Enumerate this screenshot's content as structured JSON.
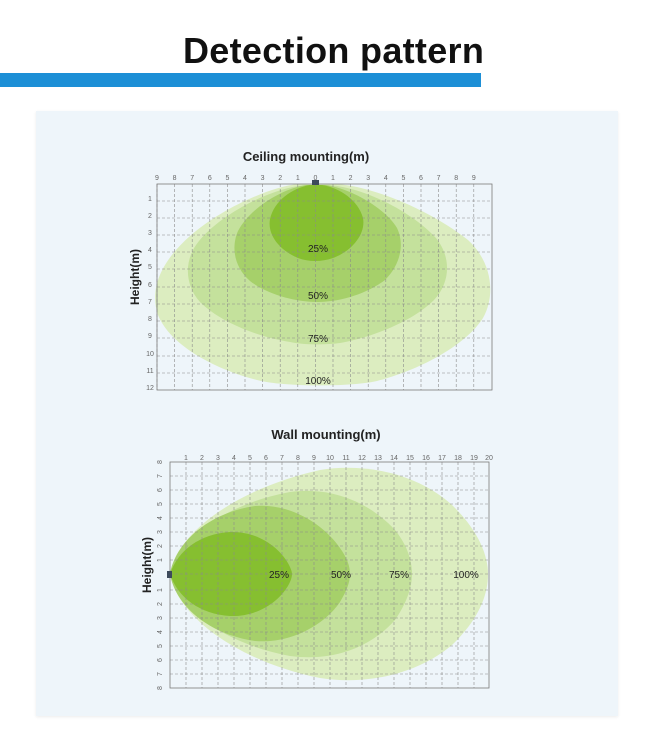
{
  "page": {
    "title": "Detection pattern"
  },
  "colors": {
    "accent_bar": "#1d8fd6",
    "panel_bg": "#eef5fa",
    "zone_100": "#dcedc0",
    "zone_75": "#c4e19c",
    "zone_50": "#a6d06a",
    "zone_25": "#86bf30",
    "sensor": "#3d4a5c"
  },
  "ceiling": {
    "title": "Ceiling mounting(m)",
    "y_axis_title": "Height(m)",
    "x_ticks": [
      "9",
      "8",
      "7",
      "6",
      "5",
      "4",
      "3",
      "2",
      "1",
      "0",
      "1",
      "2",
      "3",
      "4",
      "5",
      "6",
      "7",
      "8",
      "9"
    ],
    "y_ticks": [
      "1",
      "2",
      "3",
      "4",
      "5",
      "6",
      "7",
      "8",
      "9",
      "10",
      "11",
      "12"
    ],
    "labels": {
      "p25": "25%",
      "p50": "50%",
      "p75": "75%",
      "p100": "100%"
    }
  },
  "wall": {
    "title": "Wall mounting(m)",
    "y_axis_title": "Height(m)",
    "x_ticks": [
      "1",
      "2",
      "3",
      "4",
      "5",
      "6",
      "7",
      "8",
      "9",
      "10",
      "11",
      "12",
      "13",
      "14",
      "15",
      "16",
      "17",
      "18",
      "19",
      "20"
    ],
    "y_ticks_top": [
      "8",
      "7",
      "6",
      "5",
      "4",
      "3",
      "2",
      "1"
    ],
    "y_ticks_bottom": [
      "1",
      "2",
      "3",
      "4",
      "5",
      "6",
      "7",
      "8"
    ],
    "labels": {
      "p25": "25%",
      "p50": "50%",
      "p75": "75%",
      "p100": "100%"
    }
  }
}
